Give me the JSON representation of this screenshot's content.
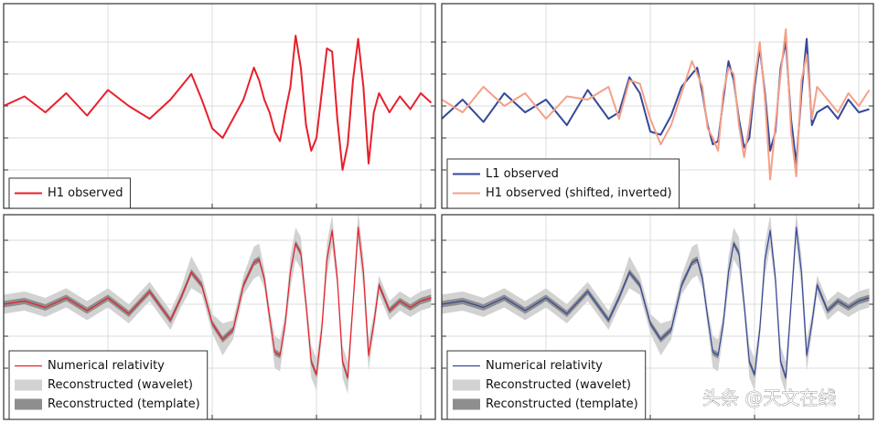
{
  "watermark": "头条 @天文在线",
  "chart_data": [
    {
      "type": "line",
      "legend": "lower left",
      "grid": true,
      "x": [
        0,
        0.2,
        0.4,
        0.6,
        0.8,
        1.0,
        1.2,
        1.4,
        1.6,
        1.7,
        1.8,
        1.9,
        2.0,
        2.1,
        2.2,
        2.3,
        2.4,
        2.45,
        2.5,
        2.55,
        2.6,
        2.65,
        2.7,
        2.75,
        2.8,
        2.85,
        2.9,
        2.95,
        3.0,
        3.05,
        3.1,
        3.15,
        3.2,
        3.25,
        3.3,
        3.35,
        3.4,
        3.45,
        3.5,
        3.55,
        3.6,
        3.7,
        3.8,
        3.9,
        4.0,
        4.1
      ],
      "xlim": [
        0,
        4.14
      ],
      "xticks": [
        1,
        2,
        3,
        4
      ],
      "ylim": [
        -1.6,
        1.6
      ],
      "yticks": [
        -1,
        -0.5,
        0,
        0.5,
        1
      ],
      "series": [
        {
          "name": "H1 observed",
          "color": "#e8202a",
          "width": 2,
          "values": [
            0.0,
            0.15,
            -0.1,
            0.2,
            -0.15,
            0.25,
            0.0,
            -0.2,
            0.1,
            0.3,
            0.5,
            0.1,
            -0.35,
            -0.5,
            -0.2,
            0.1,
            0.6,
            0.4,
            0.1,
            -0.1,
            -0.4,
            -0.55,
            -0.1,
            0.3,
            1.1,
            0.6,
            -0.3,
            -0.7,
            -0.5,
            0.2,
            0.9,
            0.85,
            -0.2,
            -1.0,
            -0.6,
            0.4,
            1.05,
            0.3,
            -0.9,
            -0.1,
            0.2,
            -0.1,
            0.15,
            -0.05,
            0.2,
            0.05
          ]
        }
      ]
    },
    {
      "type": "line",
      "legend": "lower left",
      "grid": true,
      "x": [
        0,
        0.2,
        0.4,
        0.6,
        0.8,
        1.0,
        1.2,
        1.4,
        1.6,
        1.7,
        1.8,
        1.9,
        2.0,
        2.1,
        2.2,
        2.3,
        2.4,
        2.45,
        2.5,
        2.55,
        2.6,
        2.65,
        2.7,
        2.75,
        2.8,
        2.85,
        2.9,
        2.95,
        3.0,
        3.05,
        3.1,
        3.15,
        3.2,
        3.25,
        3.3,
        3.35,
        3.4,
        3.45,
        3.5,
        3.55,
        3.6,
        3.7,
        3.8,
        3.9,
        4.0,
        4.1
      ],
      "xlim": [
        0,
        4.14
      ],
      "xticks": [
        1,
        2,
        3,
        4
      ],
      "ylim": [
        -1.6,
        1.6
      ],
      "yticks": [
        -1,
        -0.5,
        0,
        0.5,
        1
      ],
      "series": [
        {
          "name": "L1 observed",
          "color": "#34499a",
          "width": 2,
          "values": [
            -0.2,
            0.1,
            -0.25,
            0.2,
            -0.1,
            0.1,
            -0.3,
            0.25,
            -0.2,
            -0.1,
            0.45,
            0.2,
            -0.4,
            -0.45,
            -0.15,
            0.3,
            0.5,
            0.6,
            0.2,
            -0.3,
            -0.6,
            -0.55,
            0.1,
            0.7,
            0.4,
            -0.2,
            -0.65,
            -0.5,
            0.3,
            0.9,
            0.2,
            -0.7,
            -0.4,
            0.6,
            1.0,
            -0.2,
            -0.9,
            0.2,
            1.05,
            -0.3,
            -0.1,
            0.0,
            -0.2,
            0.1,
            -0.1,
            -0.05
          ]
        },
        {
          "name": "H1 observed (shifted, inverted)",
          "color": "#f4a088",
          "width": 2,
          "values": [
            0.1,
            -0.1,
            0.3,
            0.0,
            0.2,
            -0.2,
            0.15,
            0.1,
            0.3,
            -0.2,
            0.4,
            0.35,
            -0.2,
            -0.6,
            -0.3,
            0.2,
            0.7,
            0.5,
            0.3,
            -0.35,
            -0.5,
            -0.7,
            0.2,
            0.6,
            0.5,
            -0.3,
            -0.8,
            -0.3,
            0.4,
            1.0,
            0.1,
            -1.15,
            -0.3,
            0.5,
            1.2,
            -0.4,
            -1.1,
            0.4,
            0.8,
            -0.2,
            0.3,
            0.1,
            -0.1,
            0.2,
            0.0,
            0.25
          ]
        }
      ]
    },
    {
      "type": "line",
      "legend": "lower left",
      "grid": true,
      "x": [
        0,
        0.2,
        0.4,
        0.6,
        0.8,
        1.0,
        1.2,
        1.4,
        1.6,
        1.7,
        1.8,
        1.9,
        2.0,
        2.1,
        2.2,
        2.3,
        2.4,
        2.45,
        2.5,
        2.55,
        2.6,
        2.65,
        2.7,
        2.75,
        2.8,
        2.85,
        2.9,
        2.95,
        3.0,
        3.05,
        3.1,
        3.15,
        3.2,
        3.25,
        3.3,
        3.35,
        3.4,
        3.45,
        3.5,
        3.55,
        3.6,
        3.7,
        3.8,
        3.9,
        4.0,
        4.1
      ],
      "xlim": [
        0,
        4.14
      ],
      "xticks": [
        1,
        2,
        3,
        4
      ],
      "ylim": [
        -1.8,
        1.4
      ],
      "yticks": [
        -1,
        -0.5,
        0,
        0.5,
        1
      ],
      "series": [
        {
          "name": "Numerical relativity",
          "color": "#e8202a",
          "width": 1.2,
          "values": [
            0,
            0.05,
            -0.05,
            0.1,
            -0.1,
            0.1,
            -0.15,
            0.2,
            -0.25,
            0.1,
            0.5,
            0.3,
            -0.3,
            -0.55,
            -0.4,
            0.3,
            0.65,
            0.7,
            0.4,
            -0.2,
            -0.75,
            -0.8,
            -0.3,
            0.5,
            0.95,
            0.8,
            0.0,
            -0.9,
            -1.1,
            -0.4,
            0.7,
            1.15,
            0.4,
            -0.9,
            -1.15,
            0.0,
            1.2,
            0.5,
            -0.8,
            -0.3,
            0.3,
            -0.1,
            0.05,
            -0.05,
            0.05,
            0.1
          ]
        },
        {
          "name": "Reconstructed (wavelet)",
          "color": "#d2d2d2",
          "kind": "band",
          "lower": [
            -0.15,
            -0.1,
            -0.2,
            -0.05,
            -0.25,
            -0.05,
            -0.3,
            0.05,
            -0.4,
            -0.05,
            0.25,
            0.15,
            -0.45,
            -0.8,
            -0.55,
            0.15,
            0.4,
            0.45,
            0.25,
            -0.35,
            -1.0,
            -1.05,
            -0.45,
            0.25,
            0.7,
            0.55,
            -0.15,
            -1.15,
            -1.35,
            -0.55,
            0.45,
            0.9,
            0.25,
            -1.15,
            -1.4,
            -0.15,
            0.95,
            0.25,
            -1.05,
            -0.45,
            0.15,
            -0.25,
            -0.1,
            -0.2,
            -0.1,
            -0.05
          ],
          "upper": [
            0.15,
            0.2,
            0.1,
            0.25,
            0.05,
            0.25,
            0.0,
            0.35,
            -0.1,
            0.25,
            0.75,
            0.45,
            -0.15,
            -0.3,
            -0.25,
            0.45,
            0.9,
            0.95,
            0.55,
            -0.05,
            -0.5,
            -0.55,
            -0.15,
            0.75,
            1.2,
            1.05,
            0.15,
            -0.65,
            -0.85,
            -0.25,
            0.95,
            1.4,
            0.55,
            -0.65,
            -0.9,
            0.15,
            1.45,
            0.75,
            -0.55,
            -0.15,
            0.45,
            0.05,
            0.2,
            0.1,
            0.2,
            0.25
          ]
        },
        {
          "name": "Reconstructed (template)",
          "color": "#8e8e8e",
          "kind": "band",
          "lower": [
            -0.05,
            0,
            -0.1,
            0.05,
            -0.15,
            0.05,
            -0.2,
            0.15,
            -0.3,
            0.05,
            0.45,
            0.25,
            -0.35,
            -0.6,
            -0.45,
            0.25,
            0.6,
            0.65,
            0.35,
            -0.25,
            -0.8,
            -0.85,
            -0.35,
            0.45,
            0.9,
            0.75,
            -0.05,
            -0.95,
            -1.15,
            -0.45,
            0.65,
            1.1,
            0.35,
            -0.95,
            -1.2,
            -0.05,
            1.15,
            0.45,
            -0.85,
            -0.35,
            0.25,
            -0.15,
            0,
            -0.1,
            0,
            0.05
          ],
          "upper": [
            0.05,
            0.1,
            0,
            0.15,
            -0.05,
            0.15,
            -0.1,
            0.25,
            -0.2,
            0.15,
            0.55,
            0.35,
            -0.25,
            -0.5,
            -0.35,
            0.35,
            0.7,
            0.75,
            0.45,
            -0.15,
            -0.7,
            -0.75,
            -0.25,
            0.55,
            1.0,
            0.85,
            0.05,
            -0.85,
            -1.05,
            -0.35,
            0.75,
            1.2,
            0.45,
            -0.85,
            -1.1,
            0.05,
            1.25,
            0.55,
            -0.75,
            -0.25,
            0.35,
            -0.05,
            0.1,
            0,
            0.1,
            0.15
          ]
        }
      ]
    },
    {
      "type": "line",
      "legend": "lower left",
      "grid": true,
      "x": [
        0,
        0.2,
        0.4,
        0.6,
        0.8,
        1.0,
        1.2,
        1.4,
        1.6,
        1.7,
        1.8,
        1.9,
        2.0,
        2.1,
        2.2,
        2.3,
        2.4,
        2.45,
        2.5,
        2.55,
        2.6,
        2.65,
        2.7,
        2.75,
        2.8,
        2.85,
        2.9,
        2.95,
        3.0,
        3.05,
        3.1,
        3.15,
        3.2,
        3.25,
        3.3,
        3.35,
        3.4,
        3.45,
        3.5,
        3.55,
        3.6,
        3.7,
        3.8,
        3.9,
        4.0,
        4.1
      ],
      "xlim": [
        0,
        4.14
      ],
      "xticks": [
        1,
        2,
        3,
        4
      ],
      "ylim": [
        -1.8,
        1.4
      ],
      "yticks": [
        -1,
        -0.5,
        0,
        0.5,
        1
      ],
      "series": [
        {
          "name": "Numerical relativity",
          "color": "#34499a",
          "width": 1.2,
          "values": [
            0,
            0.05,
            -0.05,
            0.1,
            -0.1,
            0.1,
            -0.15,
            0.2,
            -0.25,
            0.1,
            0.5,
            0.3,
            -0.3,
            -0.55,
            -0.4,
            0.3,
            0.65,
            0.7,
            0.4,
            -0.2,
            -0.75,
            -0.8,
            -0.3,
            0.5,
            0.95,
            0.8,
            0.0,
            -0.9,
            -1.1,
            -0.4,
            0.7,
            1.15,
            0.4,
            -0.9,
            -1.15,
            0.0,
            1.2,
            0.5,
            -0.8,
            -0.3,
            0.3,
            -0.1,
            0.05,
            -0.05,
            0.05,
            0.1
          ]
        },
        {
          "name": "Reconstructed (wavelet)",
          "color": "#d2d2d2",
          "kind": "band",
          "lower": [
            -0.15,
            -0.1,
            -0.2,
            -0.05,
            -0.25,
            -0.05,
            -0.3,
            0.05,
            -0.4,
            -0.05,
            0.25,
            0.15,
            -0.45,
            -0.8,
            -0.55,
            0.15,
            0.4,
            0.45,
            0.25,
            -0.35,
            -1.0,
            -1.05,
            -0.45,
            0.25,
            0.7,
            0.55,
            -0.15,
            -1.15,
            -1.35,
            -0.55,
            0.45,
            0.9,
            0.25,
            -1.15,
            -1.4,
            -0.15,
            0.95,
            0.25,
            -1.05,
            -0.45,
            0.15,
            -0.25,
            -0.1,
            -0.2,
            -0.1,
            -0.05
          ],
          "upper": [
            0.15,
            0.2,
            0.1,
            0.25,
            0.05,
            0.25,
            0.0,
            0.35,
            -0.1,
            0.25,
            0.75,
            0.45,
            -0.15,
            -0.3,
            -0.25,
            0.45,
            0.9,
            0.95,
            0.55,
            -0.05,
            -0.5,
            -0.55,
            -0.15,
            0.75,
            1.2,
            1.05,
            0.15,
            -0.65,
            -0.85,
            -0.25,
            0.95,
            1.4,
            0.55,
            -0.65,
            -0.9,
            0.15,
            1.45,
            0.75,
            -0.55,
            -0.15,
            0.45,
            0.05,
            0.2,
            0.1,
            0.2,
            0.25
          ]
        },
        {
          "name": "Reconstructed (template)",
          "color": "#8e8e8e",
          "kind": "band",
          "lower": [
            -0.05,
            0,
            -0.1,
            0.05,
            -0.15,
            0.05,
            -0.2,
            0.15,
            -0.3,
            0.05,
            0.45,
            0.25,
            -0.35,
            -0.6,
            -0.45,
            0.25,
            0.6,
            0.65,
            0.35,
            -0.25,
            -0.8,
            -0.85,
            -0.35,
            0.45,
            0.9,
            0.75,
            -0.05,
            -0.95,
            -1.15,
            -0.45,
            0.65,
            1.1,
            0.35,
            -0.95,
            -1.2,
            -0.05,
            1.15,
            0.45,
            -0.85,
            -0.35,
            0.25,
            -0.15,
            0,
            -0.1,
            0,
            0.05
          ],
          "upper": [
            0.05,
            0.1,
            0,
            0.15,
            -0.05,
            0.15,
            -0.1,
            0.25,
            -0.2,
            0.15,
            0.55,
            0.35,
            -0.25,
            -0.5,
            -0.35,
            0.35,
            0.7,
            0.75,
            0.45,
            -0.15,
            -0.7,
            -0.75,
            -0.25,
            0.55,
            1.0,
            0.85,
            0.05,
            -0.85,
            -1.05,
            -0.35,
            0.75,
            1.2,
            0.45,
            -0.85,
            -1.1,
            0.05,
            1.25,
            0.55,
            -0.75,
            -0.25,
            0.35,
            -0.05,
            0.1,
            0,
            0.1,
            0.15
          ]
        }
      ]
    }
  ]
}
